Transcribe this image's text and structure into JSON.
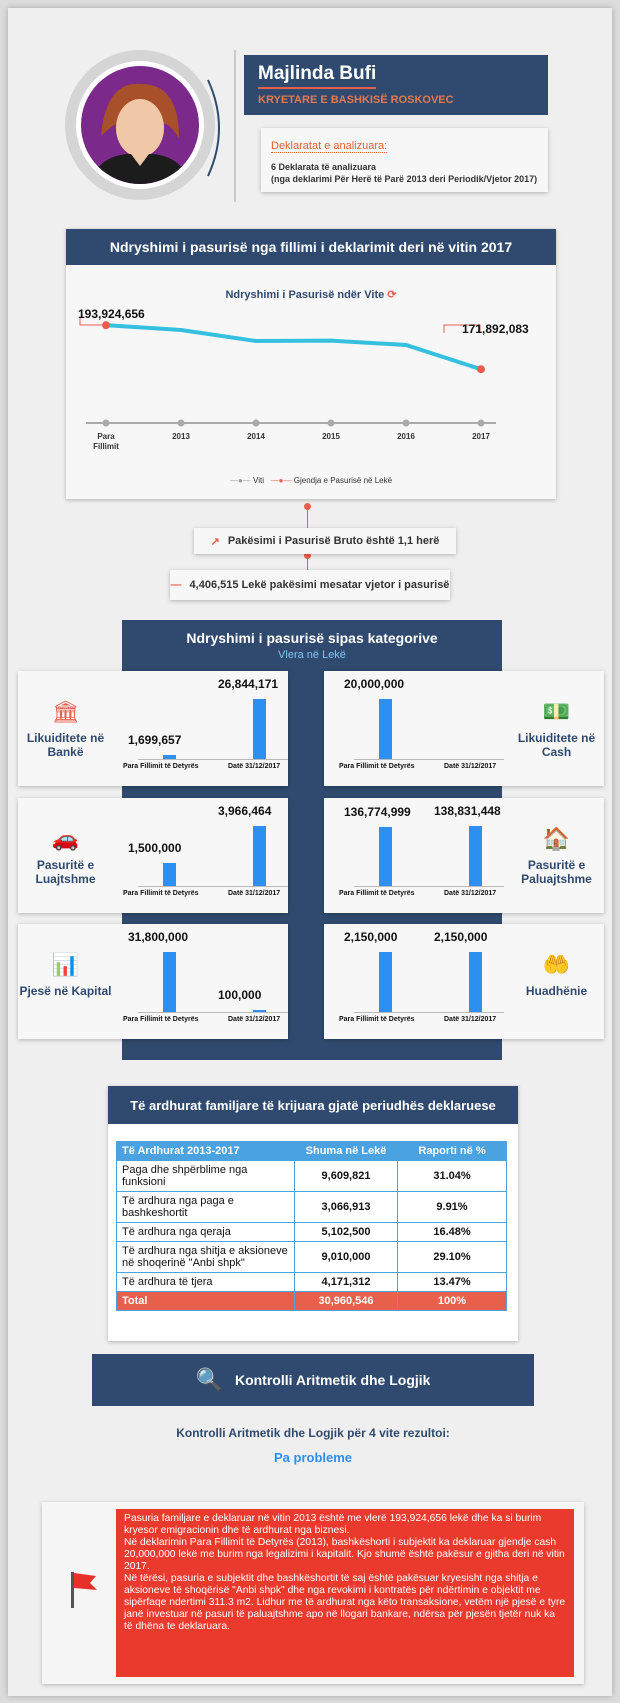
{
  "profile": {
    "name": "Majlinda Bufi",
    "role": "KRYETARE E BASHKISË ROSKOVEC",
    "decl_title": "Deklaratat e analizuara:",
    "decl_count": "6 Deklarata të analizuara",
    "decl_range": "(nga deklarimi Për Herë të Parë 2013 deri Periodik/Vjetor 2017)"
  },
  "wealth": {
    "header": "Ndryshimi i pasurisë nga fillimi i deklarimit deri në vitin 2017",
    "chart_title": "Ndryshimi i Pasurisë ndër Vite",
    "legend_x": "Viti",
    "legend_series": "Gjendja e Pasurisë në Lekë",
    "first_label": "193,924,656",
    "last_label": "171,892,083"
  },
  "chart_data": {
    "type": "line",
    "categories": [
      "Para Fillimit",
      "2013",
      "2014",
      "2015",
      "2016",
      "2017"
    ],
    "series": [
      {
        "name": "Gjendja e Pasurisë në Lekë",
        "values": [
          193924656,
          191500000,
          186000000,
          186200000,
          184000000,
          171892083
        ]
      }
    ],
    "title": "Ndryshimi i Pasurisë ndër Vite"
  },
  "summary": {
    "line1": "Pakësimi i Pasurisë Bruto është 1,1 herë",
    "line2": "4,406,515 Lekë pakësimi mesatar vjetor i pasurisë"
  },
  "categories": {
    "header": "Ndryshimi i pasurisë sipas kategorive",
    "subheader": "Vlera në Lekë",
    "before_label": "Para Fillimit të Detyrës",
    "after_label": "Datë 31/12/2017",
    "items": [
      {
        "name": "Likuiditete në Bankë",
        "before": 1699657,
        "after": 26844171,
        "before_txt": "1,699,657",
        "after_txt": "26,844,171",
        "icon": "bank-icon"
      },
      {
        "name": "Likuiditete në Cash",
        "before": 20000000,
        "after": 0,
        "before_txt": "20,000,000",
        "after_txt": "",
        "icon": "cash-icon"
      },
      {
        "name": "Pasuritë e Luajtshme",
        "before": 1500000,
        "after": 3966464,
        "before_txt": "1,500,000",
        "after_txt": "3,966,464",
        "icon": "car-icon"
      },
      {
        "name": "Pasuritë e Paluajtshme",
        "before": 136774999,
        "after": 138831448,
        "before_txt": "136,774,999",
        "after_txt": "138,831,448",
        "icon": "house-icon"
      },
      {
        "name": "Pjesë në Kapital",
        "before": 31800000,
        "after": 100000,
        "before_txt": "31,800,000",
        "after_txt": "100,000",
        "icon": "chart-icon"
      },
      {
        "name": "Hua dhënie",
        "display": "Huadhënie",
        "before": 2150000,
        "after": 2150000,
        "before_txt": "2,150,000",
        "after_txt": "2,150,000",
        "icon": "loan-icon"
      }
    ]
  },
  "income": {
    "header": "Të ardhurat familjare të krijuara gjatë periudhës deklaruese",
    "cols": [
      "Të Ardhurat 2013-2017",
      "Shuma në Lekë",
      "Raporti në %"
    ],
    "rows": [
      [
        "Paga dhe shpërblime nga funksioni",
        "9,609,821",
        "31.04%"
      ],
      [
        "Të ardhura nga paga e bashkeshortit",
        "3,066,913",
        "9.91%"
      ],
      [
        "Të ardhura nga qeraja",
        "5,102,500",
        "16.48%"
      ],
      [
        "Të ardhura nga shitja e aksioneve në shoqerinë \"Anbi shpk\"",
        "9,010,000",
        "29.10%"
      ],
      [
        "Të ardhura të tjera",
        "4,171,312",
        "13.47%"
      ]
    ],
    "total": [
      "Total",
      "30,960,546",
      "100%"
    ]
  },
  "control": {
    "header": "Kontrolli Aritmetik dhe Logjik",
    "text": "Kontrolli Aritmetik dhe Logjik për 4 vite rezultoi:",
    "result": "Pa probleme"
  },
  "note": {
    "p1": "Pasuria familjare e deklaruar në vitin 2013 është  me vlerë 193,924,656 lekë dhe ka si burim kryesor emigracionin dhe të ardhurat nga biznesi.",
    "p2": "Në deklarimin Para Fillimit të Detyrës (2013), bashkëshorti i subjektit ka deklaruar gjendje cash 20,000,000 lekë me burim nga legalizimi i kapitalit. Kjo shumë është pakësur e gjitha deri në vitin 2017.",
    "p3": "Në tërësi, pasuria e subjektit dhe bashkëshortit të saj është pakësuar kryesisht nga shitja e aksioneve të shoqërisë \"Anbi shpk\" dhe nga revokimi i kontratës për ndërtimin e objektit me sipërfaqe ndertimi 311.3 m2. Lidhur me të ardhurat nga këto transaksione, vetëm një pjesë e tyre janë investuar në pasuri të paluajtshme apo në llogari bankare, ndërsa për pjesën tjetër nuk ka të dhëna te deklaruara."
  }
}
